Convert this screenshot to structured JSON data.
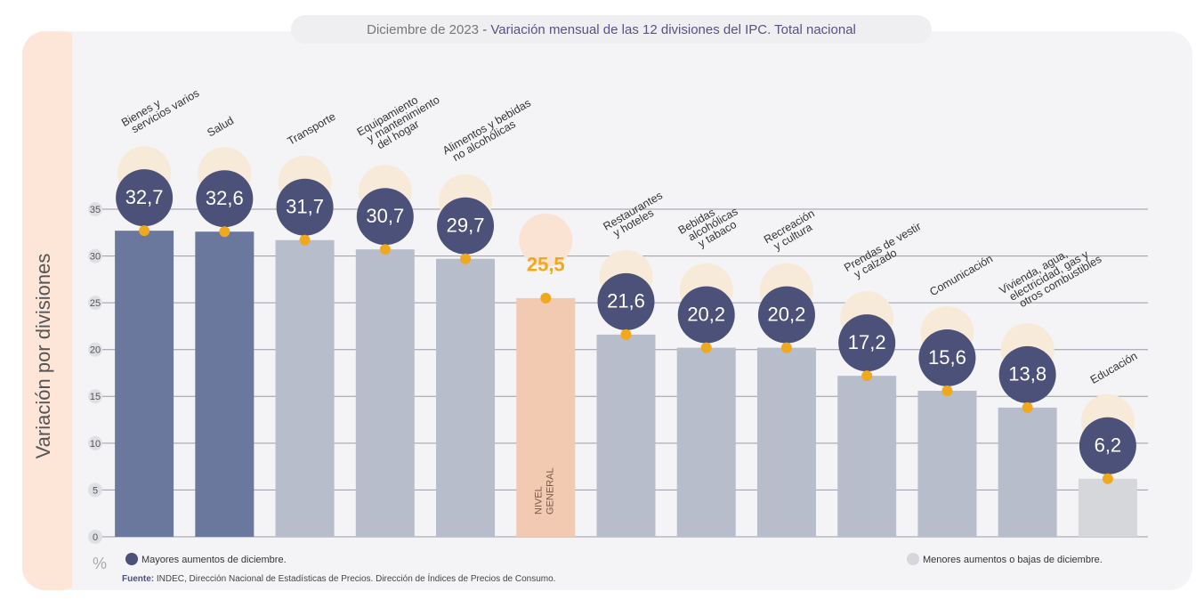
{
  "chart_data": {
    "type": "bar",
    "title": "Diciembre de 2023",
    "subtitle": "- Variación mensual de las 12 divisiones del IPC. Total nacional",
    "y_label": "Variación por divisiones",
    "unit": "%",
    "categories": [
      [
        "Bienes y",
        "servicios varios"
      ],
      [
        "Salud"
      ],
      [
        "Transporte"
      ],
      [
        "Equipamiento",
        "y mantenimiento",
        "del hogar"
      ],
      [
        "Alimentos y bebidas",
        "no alcohólicas"
      ],
      [
        "NIVEL",
        "GENERAL"
      ],
      [
        "Restaurantes",
        "y hoteles"
      ],
      [
        "Bebidas",
        "alcohólicas",
        "y tabaco"
      ],
      [
        "Recreación",
        "y cultura"
      ],
      [
        "Prendas de vestir",
        "y calzado"
      ],
      [
        "Comunicación"
      ],
      [
        "Vivienda, agua,",
        "electricidad, gas y",
        "otros combustibles"
      ],
      [
        "Educación"
      ]
    ],
    "values": [
      32.7,
      32.6,
      31.7,
      30.7,
      29.7,
      25.5,
      21.6,
      20.2,
      20.2,
      17.2,
      15.6,
      13.8,
      6.2
    ],
    "value_labels": [
      "32,7",
      "32,6",
      "31,7",
      "30,7",
      "29,7",
      "25,5",
      "21,6",
      "20,2",
      "20,2",
      "17,2",
      "15,6",
      "13,8",
      "6,2"
    ],
    "colors": [
      "#6a789d",
      "#6a789d",
      "#b8bdcc",
      "#b8bdcc",
      "#b8bdcc",
      "#f2c9b1",
      "#b8bdcc",
      "#b8bdcc",
      "#b8bdcc",
      "#b8bdcc",
      "#b8bdcc",
      "#b8bdcc",
      "#d5d7db"
    ],
    "ylim": [
      0,
      35
    ],
    "yticks": [
      0,
      5,
      10,
      15,
      20,
      25,
      30,
      35
    ],
    "grid": true,
    "legend": [
      {
        "label": "Mayores aumentos de diciembre.",
        "color": "#4b5178"
      },
      {
        "label": "Menores aumentos o bajas de diciembre.",
        "color": "#d5d7db"
      }
    ],
    "source_label": "Fuente:",
    "source": "INDEC, Dirección Nacional de Estadísticas de Precios. Dirección de Índices de Precios de Consumo."
  }
}
